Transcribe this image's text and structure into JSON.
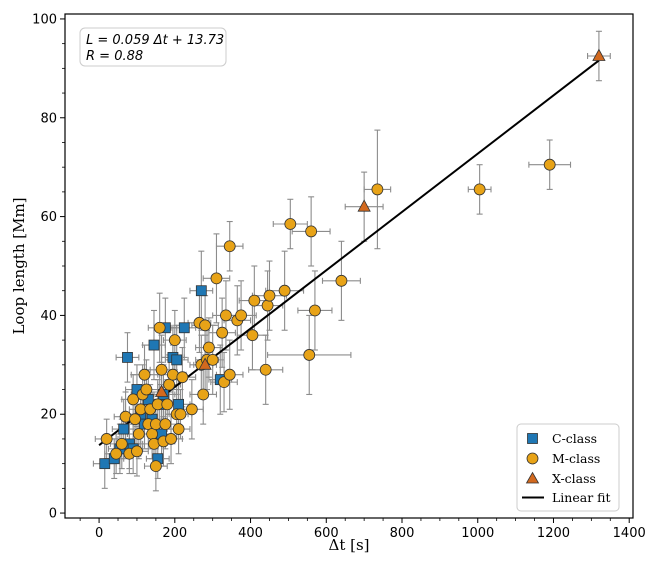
{
  "chart_data": {
    "type": "scatter",
    "xlabel": "Δt [s]",
    "ylabel": "Loop length [Mm]",
    "xlim": [
      -90,
      1410
    ],
    "ylim": [
      -1,
      101
    ],
    "xticks": [
      0,
      200,
      400,
      600,
      800,
      1000,
      1200,
      1400
    ],
    "yticks": [
      0,
      20,
      40,
      60,
      80,
      100
    ],
    "xtick_labels": [
      "0",
      "200",
      "400",
      "600",
      "800",
      "1000",
      "1200",
      "1400"
    ],
    "ytick_labels": [
      "0",
      "20",
      "40",
      "60",
      "80",
      "100"
    ],
    "annotation": {
      "line1": "L = 0.059 Δt + 13.73",
      "line2": "R = 0.88"
    },
    "fit": {
      "name": "Linear fit",
      "slope": 0.059,
      "intercept": 13.73,
      "x_range": [
        0,
        1320
      ],
      "color": "#000000"
    },
    "legend": {
      "position": "bottom-right",
      "entries": [
        "C-class",
        "M-class",
        "X-class",
        "Linear fit"
      ]
    },
    "series": [
      {
        "name": "C-class",
        "marker": "square",
        "color": "#1f77b4",
        "points": [
          [
            15,
            10,
            30,
            5
          ],
          [
            40,
            11,
            25,
            4
          ],
          [
            55,
            13,
            30,
            5
          ],
          [
            65,
            17,
            30,
            6
          ],
          [
            75,
            31.5,
            30,
            5
          ],
          [
            80,
            14,
            30,
            5
          ],
          [
            90,
            13,
            25,
            5
          ],
          [
            100,
            25,
            30,
            5
          ],
          [
            110,
            20,
            30,
            6
          ],
          [
            120,
            18,
            30,
            5
          ],
          [
            130,
            23,
            30,
            6
          ],
          [
            140,
            19,
            30,
            5
          ],
          [
            145,
            34,
            30,
            7
          ],
          [
            155,
            11,
            30,
            4
          ],
          [
            160,
            22,
            30,
            6
          ],
          [
            165,
            16,
            25,
            5
          ],
          [
            170,
            24,
            30,
            6
          ],
          [
            175,
            37.5,
            30,
            6
          ],
          [
            195,
            31.5,
            30,
            6
          ],
          [
            205,
            31,
            30,
            7
          ],
          [
            210,
            22,
            30,
            5
          ],
          [
            225,
            37.5,
            30,
            6
          ],
          [
            270,
            45,
            30,
            8
          ],
          [
            320,
            27,
            30,
            7
          ]
        ]
      },
      {
        "name": "M-class",
        "marker": "circle",
        "color": "#e8a317",
        "points": [
          [
            20,
            15,
            30,
            4
          ],
          [
            45,
            12,
            30,
            4
          ],
          [
            60,
            14,
            30,
            5
          ],
          [
            70,
            19.5,
            30,
            5
          ],
          [
            80,
            12,
            30,
            4
          ],
          [
            90,
            23,
            30,
            5
          ],
          [
            95,
            19,
            30,
            5
          ],
          [
            100,
            12.5,
            30,
            5
          ],
          [
            105,
            16,
            30,
            5
          ],
          [
            110,
            21,
            30,
            5
          ],
          [
            115,
            24,
            30,
            6
          ],
          [
            120,
            28,
            35,
            6
          ],
          [
            125,
            25,
            30,
            6
          ],
          [
            130,
            18,
            30,
            5
          ],
          [
            135,
            21,
            30,
            5
          ],
          [
            140,
            16,
            30,
            5
          ],
          [
            145,
            14,
            30,
            5
          ],
          [
            150,
            9.5,
            30,
            5
          ],
          [
            150,
            18,
            30,
            5
          ],
          [
            155,
            22,
            30,
            5
          ],
          [
            160,
            37.5,
            30,
            7
          ],
          [
            165,
            29,
            30,
            7
          ],
          [
            170,
            14.5,
            30,
            5
          ],
          [
            175,
            18,
            30,
            5
          ],
          [
            180,
            22,
            35,
            5
          ],
          [
            185,
            26,
            30,
            6
          ],
          [
            190,
            15,
            30,
            5
          ],
          [
            195,
            28,
            35,
            6
          ],
          [
            200,
            35,
            30,
            6
          ],
          [
            205,
            20,
            30,
            5
          ],
          [
            210,
            17,
            30,
            5
          ],
          [
            215,
            20,
            30,
            5
          ],
          [
            220,
            27.5,
            35,
            6
          ],
          [
            245,
            21,
            30,
            6
          ],
          [
            265,
            38.5,
            30,
            6
          ],
          [
            270,
            30,
            30,
            6
          ],
          [
            275,
            24,
            35,
            6
          ],
          [
            280,
            38,
            35,
            6
          ],
          [
            285,
            31,
            30,
            6
          ],
          [
            290,
            33.5,
            35,
            6
          ],
          [
            300,
            31,
            30,
            7
          ],
          [
            310,
            47.5,
            35,
            9
          ],
          [
            325,
            36.5,
            35,
            7
          ],
          [
            330,
            26.5,
            35,
            6
          ],
          [
            335,
            40,
            35,
            7
          ],
          [
            345,
            28,
            35,
            7
          ],
          [
            345,
            54,
            35,
            5
          ],
          [
            365,
            39,
            35,
            7
          ],
          [
            375,
            40,
            40,
            7
          ],
          [
            405,
            36,
            40,
            7
          ],
          [
            410,
            43,
            40,
            7
          ],
          [
            440,
            29,
            45,
            7
          ],
          [
            445,
            42,
            40,
            7
          ],
          [
            450,
            44,
            45,
            7
          ],
          [
            490,
            45,
            50,
            8
          ],
          [
            505,
            58.5,
            45,
            5
          ],
          [
            555,
            32,
            110,
            8
          ],
          [
            560,
            57,
            50,
            7
          ],
          [
            570,
            41,
            45,
            8
          ],
          [
            640,
            47,
            50,
            8
          ],
          [
            735,
            65.5,
            35,
            12
          ],
          [
            1005,
            65.5,
            30,
            5
          ],
          [
            1190,
            70.5,
            55,
            5
          ]
        ]
      },
      {
        "name": "X-class",
        "marker": "triangle",
        "color": "#d2691e",
        "points": [
          [
            165,
            24.5,
            30,
            6
          ],
          [
            280,
            30,
            30,
            6
          ],
          [
            700,
            62,
            50,
            7
          ],
          [
            1320,
            92.5,
            30,
            5
          ]
        ]
      }
    ]
  }
}
